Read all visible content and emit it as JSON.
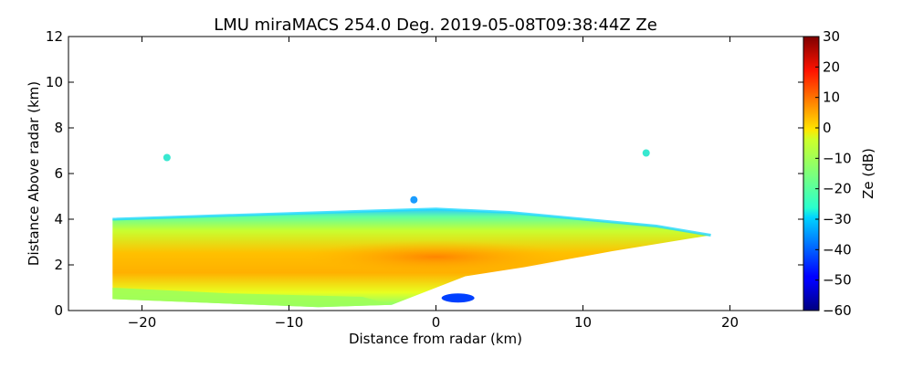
{
  "chart_data": {
    "type": "heatmap",
    "title": "LMU miraMACS 254.0 Deg. 2019-05-08T09:38:44Z  Ze",
    "xlabel": "Distance from radar (km)",
    "ylabel": "Distance Above radar  (km)",
    "xlim": [
      -25,
      25
    ],
    "ylim": [
      0,
      12
    ],
    "x_ticks": [
      -20,
      -10,
      0,
      10,
      20
    ],
    "x_tick_labels": [
      "−20",
      "−10",
      "0",
      "10",
      "20"
    ],
    "y_ticks": [
      0,
      2,
      4,
      6,
      8,
      10,
      12
    ],
    "y_tick_labels": [
      "0",
      "2",
      "4",
      "6",
      "8",
      "10",
      "12"
    ],
    "colorbar": {
      "label": "Ze (dB)",
      "range": [
        -60,
        30
      ],
      "ticks": [
        -60,
        -50,
        -40,
        -30,
        -20,
        -10,
        0,
        10,
        20,
        30
      ],
      "tick_labels": [
        "−60",
        "−50",
        "−40",
        "−30",
        "−20",
        "−10",
        "0",
        "10",
        "20",
        "30"
      ],
      "colormap": "jet"
    },
    "echo_region": {
      "description_values": "approximate reflectivity field extent in km",
      "top_boundary": [
        [
          -22,
          4.0
        ],
        [
          -15,
          4.15
        ],
        [
          -5,
          4.35
        ],
        [
          0,
          4.45
        ],
        [
          5,
          4.3
        ],
        [
          10,
          4.0
        ],
        [
          15,
          3.7
        ],
        [
          18.7,
          3.3
        ]
      ],
      "bottom_boundary": [
        [
          18.7,
          3.3
        ],
        [
          12,
          2.6
        ],
        [
          6,
          1.9
        ],
        [
          2,
          1.5
        ],
        [
          0,
          1.0
        ],
        [
          -3,
          0.25
        ],
        [
          -8,
          0.15
        ],
        [
          -14,
          0.3
        ],
        [
          -22,
          0.5
        ]
      ],
      "core_max_dB": 10,
      "core_location": [
        [
          -5,
          2.2
        ],
        [
          5,
          2.5
        ]
      ],
      "edge_dB": -25,
      "isolated_echoes": [
        {
          "x": -18.3,
          "y": 6.7,
          "dB": -25
        },
        {
          "x": 14.3,
          "y": 6.9,
          "dB": -25
        },
        {
          "x": -1.5,
          "y": 4.85,
          "dB": -35
        },
        {
          "x": 1.5,
          "y": 0.55,
          "dB": -45
        }
      ]
    }
  }
}
